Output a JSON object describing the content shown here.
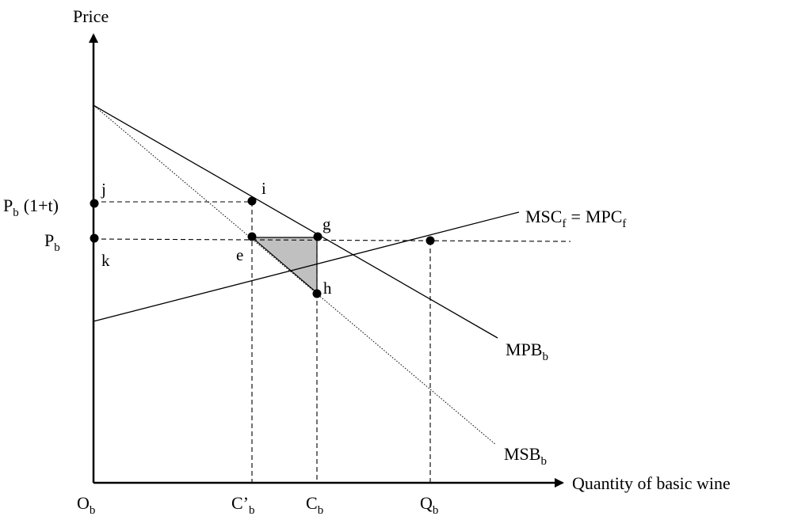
{
  "axes": {
    "y_title": "Price",
    "x_title": "Quantity of basic wine"
  },
  "curves": {
    "mpb": {
      "main": "MPB",
      "sub": "b"
    },
    "msb": {
      "main": "MSB",
      "sub": "b"
    },
    "msc": {
      "part1_main": "MSC",
      "part1_sub": "f",
      "equals": "=",
      "part2_main": "MPC",
      "part2_sub": "f"
    }
  },
  "price_labels": {
    "pb_tax": {
      "main": "P",
      "sub": "b",
      "rest": "(1+t)"
    },
    "pb": {
      "main": "P",
      "sub": "b"
    }
  },
  "quantity_labels": {
    "origin": {
      "main": "O",
      "sub": "b"
    },
    "c_prime": {
      "main": "C’",
      "sub": "b"
    },
    "c": {
      "main": "C",
      "sub": "b"
    },
    "q": {
      "main": "Q",
      "sub": "b"
    }
  },
  "points": {
    "i": "i",
    "g": "g",
    "e": "e",
    "h": "h",
    "j": "j",
    "k": "k"
  },
  "colors": {
    "line": "#000000",
    "triangle_fill": "#c0c0c0"
  }
}
